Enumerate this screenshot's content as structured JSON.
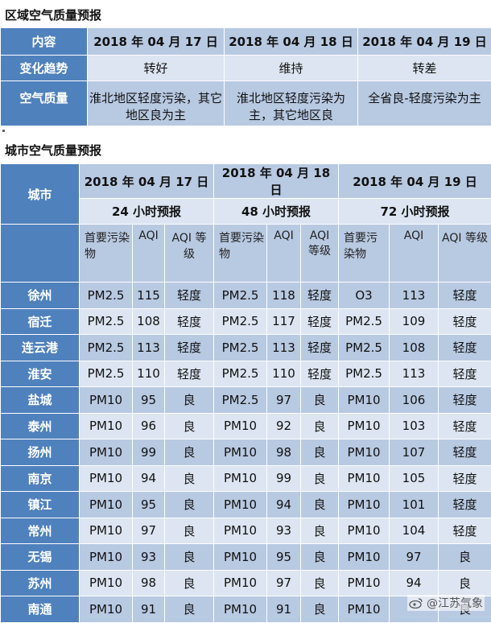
{
  "regional": {
    "title": "区域空气质量预报",
    "col_header": "内容",
    "dates": [
      "2018 年 04 月 17 日",
      "2018 年 04 月 18 日",
      "2018 年 04 月 19 日"
    ],
    "trend_label": "变化趋势",
    "trend": [
      "转好",
      "维持",
      "转差"
    ],
    "quality_label": "空气质量",
    "quality": [
      "淮北地区轻度污染，其它地区良为主",
      "淮北地区轻度污染为主，其它地区良",
      "全省良-轻度污染为主"
    ]
  },
  "city": {
    "title": "城市空气质量预报",
    "city_label": "城市",
    "dates": [
      "2018 年 04 月 17 日",
      "2018 年 04 月 18 日",
      "2018 年 04 月 19 日"
    ],
    "periods": [
      "24 小时预报",
      "48 小时预报",
      "72 小时预报"
    ],
    "sub_headers": [
      "首要污染物",
      "AQI",
      "AQI 等级"
    ],
    "rows": [
      {
        "city": "徐州",
        "d1": [
          "PM2.5",
          "115",
          "轻度"
        ],
        "d2": [
          "PM2.5",
          "118",
          "轻度"
        ],
        "d3": [
          "O3",
          "113",
          "轻度"
        ]
      },
      {
        "city": "宿迁",
        "d1": [
          "PM2.5",
          "108",
          "轻度"
        ],
        "d2": [
          "PM2.5",
          "117",
          "轻度"
        ],
        "d3": [
          "PM2.5",
          "109",
          "轻度"
        ]
      },
      {
        "city": "连云港",
        "d1": [
          "PM2.5",
          "113",
          "轻度"
        ],
        "d2": [
          "PM2.5",
          "113",
          "轻度"
        ],
        "d3": [
          "PM2.5",
          "108",
          "轻度"
        ]
      },
      {
        "city": "淮安",
        "d1": [
          "PM2.5",
          "110",
          "轻度"
        ],
        "d2": [
          "PM2.5",
          "110",
          "轻度"
        ],
        "d3": [
          "PM2.5",
          "113",
          "轻度"
        ]
      },
      {
        "city": "盐城",
        "d1": [
          "PM10",
          "95",
          "良"
        ],
        "d2": [
          "PM2.5",
          "97",
          "良"
        ],
        "d3": [
          "PM10",
          "106",
          "轻度"
        ]
      },
      {
        "city": "泰州",
        "d1": [
          "PM10",
          "96",
          "良"
        ],
        "d2": [
          "PM10",
          "92",
          "良"
        ],
        "d3": [
          "PM10",
          "103",
          "轻度"
        ]
      },
      {
        "city": "扬州",
        "d1": [
          "PM10",
          "99",
          "良"
        ],
        "d2": [
          "PM10",
          "98",
          "良"
        ],
        "d3": [
          "PM10",
          "107",
          "轻度"
        ]
      },
      {
        "city": "南京",
        "d1": [
          "PM10",
          "94",
          "良"
        ],
        "d2": [
          "PM10",
          "99",
          "良"
        ],
        "d3": [
          "PM10",
          "105",
          "轻度"
        ]
      },
      {
        "city": "镇江",
        "d1": [
          "PM10",
          "95",
          "良"
        ],
        "d2": [
          "PM10",
          "94",
          "良"
        ],
        "d3": [
          "PM10",
          "101",
          "轻度"
        ]
      },
      {
        "city": "常州",
        "d1": [
          "PM10",
          "97",
          "良"
        ],
        "d2": [
          "PM10",
          "93",
          "良"
        ],
        "d3": [
          "PM10",
          "104",
          "轻度"
        ]
      },
      {
        "city": "无锡",
        "d1": [
          "PM10",
          "93",
          "良"
        ],
        "d2": [
          "PM10",
          "95",
          "良"
        ],
        "d3": [
          "PM10",
          "97",
          "良"
        ]
      },
      {
        "city": "苏州",
        "d1": [
          "PM10",
          "98",
          "良"
        ],
        "d2": [
          "PM10",
          "97",
          "良"
        ],
        "d3": [
          "PM10",
          "94",
          "良"
        ]
      },
      {
        "city": "南通",
        "d1": [
          "PM10",
          "91",
          "良"
        ],
        "d2": [
          "PM10",
          "91",
          "良"
        ],
        "d3": [
          "PM10",
          "",
          "良"
        ]
      }
    ]
  },
  "watermark": {
    "text": "@江苏气象",
    "icon": "weibo-icon"
  },
  "colors": {
    "header": "#4f81bd",
    "band1": "#b8c9e2",
    "band2": "#dce5f1"
  }
}
